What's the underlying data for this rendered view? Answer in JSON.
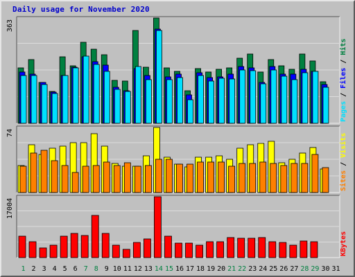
{
  "title": "Daily usage for November 2020",
  "colors": {
    "hits": "#008040",
    "files": "#0000ff",
    "pages": "#00e0ff",
    "visits": "#ffff00",
    "sites": "#ff8000",
    "kbytes": "#ff0000",
    "weekend_label": "#008040",
    "weekday_label": "#000000",
    "background": "#c0c0c0",
    "gridline": "#dddddd"
  },
  "chart_data": [
    {
      "type": "bar",
      "panel": "top",
      "ymax_label": "363",
      "ylim": [
        0,
        363
      ],
      "side_labels": [
        {
          "text": "Hits",
          "color": "#008040"
        },
        {
          "text": "Files",
          "color": "#0000ff"
        },
        {
          "text": "Pages",
          "color": "#00e0ff"
        }
      ],
      "categories": [
        "1",
        "2",
        "3",
        "4",
        "5",
        "6",
        "7",
        "8",
        "9",
        "10",
        "11",
        "12",
        "13",
        "14",
        "15",
        "16",
        "17",
        "18",
        "19",
        "20",
        "21",
        "22",
        "23",
        "24",
        "25",
        "26",
        "27",
        "28",
        "29",
        "30",
        "31"
      ],
      "series": [
        {
          "name": "Hits",
          "color": "#008040",
          "values": [
            191,
            220,
            140,
            111,
            230,
            199,
            280,
            256,
            236,
            149,
            146,
            320,
            194,
            363,
            191,
            180,
            113,
            189,
            177,
            187,
            190,
            225,
            238,
            176,
            220,
            199,
            187,
            238,
            214,
            144,
            0
          ]
        },
        {
          "name": "Files",
          "color": "#0000ff",
          "values": [
            177,
            170,
            140,
            107,
            164,
            194,
            229,
            213,
            200,
            123,
            113,
            189,
            165,
            325,
            161,
            170,
            97,
            174,
            157,
            160,
            170,
            197,
            190,
            141,
            195,
            169,
            170,
            186,
            178,
            133,
            0
          ]
        },
        {
          "name": "Pages",
          "color": "#00e0ff",
          "values": [
            165,
            165,
            133,
            103,
            165,
            190,
            232,
            202,
            180,
            118,
            110,
            195,
            150,
            320,
            150,
            158,
            82,
            165,
            146,
            156,
            153,
            185,
            182,
            135,
            185,
            163,
            150,
            175,
            178,
            125,
            0
          ]
        }
      ]
    },
    {
      "type": "bar",
      "panel": "middle",
      "ymax_label": "74",
      "ylim": [
        0,
        74
      ],
      "side_labels": [
        {
          "text": "Visits",
          "color": "#ffff00"
        },
        {
          "text": "Sites",
          "color": "#ff8000"
        }
      ],
      "categories": [
        "1",
        "2",
        "3",
        "4",
        "5",
        "6",
        "7",
        "8",
        "9",
        "10",
        "11",
        "12",
        "13",
        "14",
        "15",
        "16",
        "17",
        "18",
        "19",
        "20",
        "21",
        "22",
        "23",
        "24",
        "25",
        "26",
        "27",
        "28",
        "29",
        "30",
        "31"
      ],
      "series": [
        {
          "name": "Visits",
          "color": "#ffff00",
          "values": [
            31,
            54,
            43,
            50,
            53,
            57,
            57,
            67,
            53,
            33,
            30,
            30,
            42,
            74,
            40,
            32,
            29,
            40,
            40,
            42,
            38,
            50,
            54,
            56,
            58,
            34,
            38,
            45,
            51,
            27,
            0
          ]
        },
        {
          "name": "Sites",
          "color": "#ff8000",
          "values": [
            30,
            45,
            48,
            36,
            31,
            23,
            30,
            31,
            35,
            31,
            34,
            30,
            31,
            38,
            38,
            32,
            32,
            35,
            35,
            35,
            30,
            33,
            33,
            35,
            33,
            31,
            33,
            33,
            43,
            28,
            0
          ]
        }
      ]
    },
    {
      "type": "bar",
      "panel": "bottom",
      "ymax_label": "17004",
      "ylim": [
        0,
        17004
      ],
      "side_labels": [
        {
          "text": "KBytes",
          "color": "#ff0000"
        }
      ],
      "categories": [
        "1",
        "2",
        "3",
        "4",
        "5",
        "6",
        "7",
        "8",
        "9",
        "10",
        "11",
        "12",
        "13",
        "14",
        "15",
        "16",
        "17",
        "18",
        "19",
        "20",
        "21",
        "22",
        "23",
        "24",
        "25",
        "26",
        "27",
        "28",
        "29",
        "30",
        "31"
      ],
      "series": [
        {
          "name": "KBytes",
          "color": "#ff0000",
          "values": [
            5900,
            4500,
            2700,
            3400,
            5900,
            6800,
            6200,
            11700,
            6700,
            3400,
            2400,
            4200,
            5200,
            17004,
            5900,
            4000,
            4100,
            3500,
            4400,
            4400,
            5700,
            5400,
            5400,
            5700,
            4400,
            4300,
            3500,
            4700,
            4500,
            0,
            0
          ]
        }
      ]
    }
  ],
  "x_labels": [
    {
      "day": "1",
      "weekend": true
    },
    {
      "day": "2",
      "weekend": false
    },
    {
      "day": "3",
      "weekend": false
    },
    {
      "day": "4",
      "weekend": false
    },
    {
      "day": "5",
      "weekend": false
    },
    {
      "day": "6",
      "weekend": false
    },
    {
      "day": "7",
      "weekend": true
    },
    {
      "day": "8",
      "weekend": true
    },
    {
      "day": "9",
      "weekend": false
    },
    {
      "day": "10",
      "weekend": false
    },
    {
      "day": "11",
      "weekend": false
    },
    {
      "day": "12",
      "weekend": false
    },
    {
      "day": "13",
      "weekend": false
    },
    {
      "day": "14",
      "weekend": true
    },
    {
      "day": "15",
      "weekend": true
    },
    {
      "day": "16",
      "weekend": false
    },
    {
      "day": "17",
      "weekend": false
    },
    {
      "day": "18",
      "weekend": false
    },
    {
      "day": "19",
      "weekend": false
    },
    {
      "day": "20",
      "weekend": false
    },
    {
      "day": "21",
      "weekend": true
    },
    {
      "day": "22",
      "weekend": true
    },
    {
      "day": "23",
      "weekend": false
    },
    {
      "day": "24",
      "weekend": false
    },
    {
      "day": "25",
      "weekend": false
    },
    {
      "day": "26",
      "weekend": false
    },
    {
      "day": "27",
      "weekend": false
    },
    {
      "day": "28",
      "weekend": true
    },
    {
      "day": "29",
      "weekend": true
    },
    {
      "day": "30",
      "weekend": false
    },
    {
      "day": "31",
      "weekend": false
    }
  ]
}
